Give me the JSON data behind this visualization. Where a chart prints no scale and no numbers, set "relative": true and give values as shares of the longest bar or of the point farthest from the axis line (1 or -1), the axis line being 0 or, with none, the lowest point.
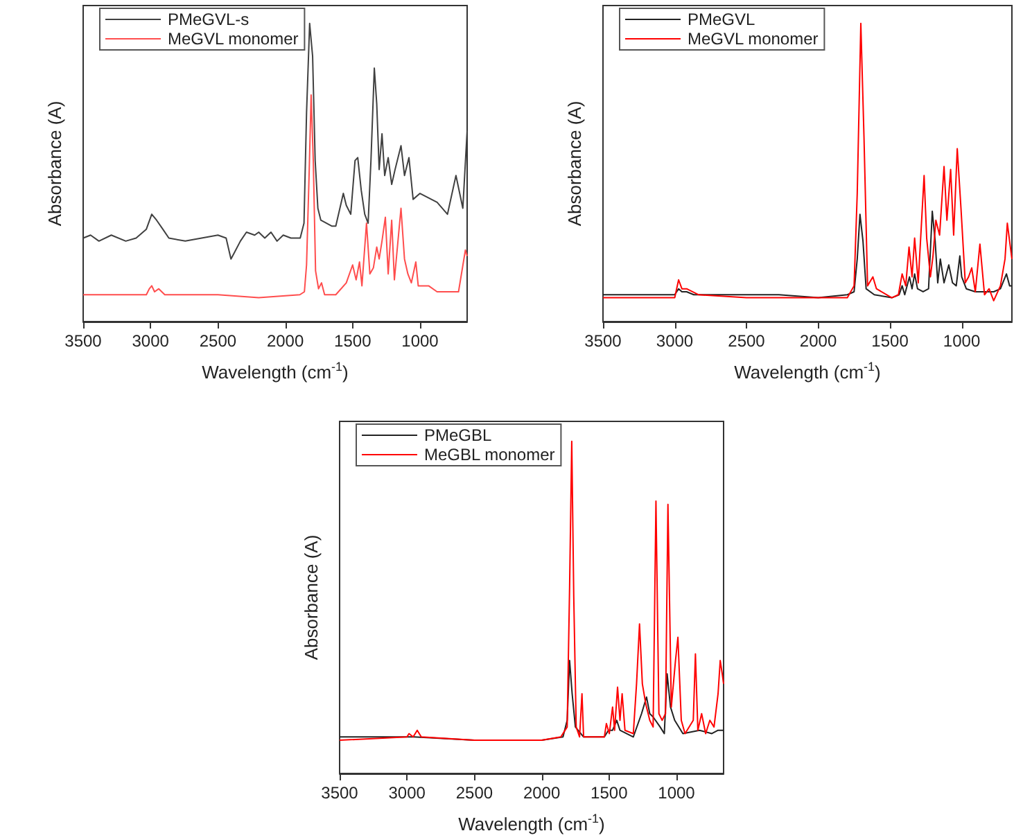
{
  "chart_data": [
    {
      "type": "line",
      "relative": true,
      "xlabel": "Wavelength (cm$^{-1}$)",
      "ylabel": "Absorbance (A)",
      "xlim": [
        3500,
        650
      ],
      "xticks": [
        3500,
        3000,
        2500,
        2000,
        1500,
        1000
      ],
      "legend": "top left",
      "marker": "none",
      "line_style": "solid",
      "grid": false,
      "series": [
        {
          "name": "PMeGVL-s",
          "color": "#404040",
          "x": [
            3500,
            3445,
            3383,
            3291,
            3184,
            3107,
            3031,
            2991,
            2955,
            2909,
            2864,
            2742,
            2621,
            2500,
            2439,
            2403,
            2379,
            2333,
            2288,
            2227,
            2197,
            2152,
            2106,
            2061,
            2015,
            1958,
            1889,
            1861,
            1842,
            1819,
            1797,
            1778,
            1758,
            1736,
            1653,
            1625,
            1569,
            1547,
            1514,
            1482,
            1462,
            1436,
            1410,
            1385,
            1364,
            1339,
            1321,
            1303,
            1282,
            1262,
            1236,
            1210,
            1185,
            1141,
            1115,
            1082,
            1051,
            1000,
            873,
            796,
            733,
            682,
            650
          ],
          "values": [
            0.28,
            0.29,
            0.27,
            0.29,
            0.27,
            0.28,
            0.31,
            0.36,
            0.34,
            0.31,
            0.28,
            0.27,
            0.28,
            0.29,
            0.28,
            0.21,
            0.23,
            0.27,
            0.3,
            0.29,
            0.3,
            0.28,
            0.3,
            0.27,
            0.29,
            0.28,
            0.28,
            0.33,
            0.7,
            1,
            0.89,
            0.54,
            0.38,
            0.34,
            0.32,
            0.32,
            0.43,
            0.39,
            0.36,
            0.54,
            0.55,
            0.44,
            0.36,
            0.33,
            0.54,
            0.85,
            0.73,
            0.51,
            0.63,
            0.49,
            0.55,
            0.46,
            0.51,
            0.59,
            0.49,
            0.55,
            0.41,
            0.43,
            0.4,
            0.36,
            0.49,
            0.38,
            0.64
          ]
        },
        {
          "name": "MeGVL monomer",
          "color": "#ff4d4d",
          "x": [
            3500,
            3031,
            3009,
            2991,
            2970,
            2939,
            2894,
            2803,
            2500,
            2197,
            1892,
            1858,
            1842,
            1822,
            1808,
            1792,
            1775,
            1753,
            1731,
            1708,
            1625,
            1547,
            1500,
            1474,
            1449,
            1431,
            1397,
            1372,
            1346,
            1321,
            1303,
            1282,
            1257,
            1236,
            1210,
            1190,
            1141,
            1115,
            1090,
            1064,
            1031,
            1013,
            936,
            873,
            714,
            663,
            650
          ],
          "values": [
            0.09,
            0.09,
            0.11,
            0.12,
            0.1,
            0.11,
            0.09,
            0.09,
            0.09,
            0.08,
            0.09,
            0.1,
            0.19,
            0.51,
            0.76,
            0.54,
            0.17,
            0.11,
            0.13,
            0.09,
            0.09,
            0.13,
            0.19,
            0.14,
            0.2,
            0.12,
            0.33,
            0.16,
            0.18,
            0.25,
            0.21,
            0.27,
            0.35,
            0.16,
            0.34,
            0.14,
            0.38,
            0.21,
            0.16,
            0.13,
            0.2,
            0.12,
            0.12,
            0.1,
            0.1,
            0.24,
            0.22
          ]
        }
      ]
    },
    {
      "type": "line",
      "relative": true,
      "xlabel": "Wavelength (cm$^{-1}$)",
      "ylabel": "Absorbance (A)",
      "xlim": [
        3500,
        650
      ],
      "xticks": [
        3500,
        3000,
        2500,
        2000,
        1500,
        1000
      ],
      "legend": "top left",
      "marker": "none",
      "line_style": "solid",
      "grid": false,
      "series": [
        {
          "name": "PMeGVL",
          "color": "#222222",
          "x": [
            3500,
            3258,
            3000,
            2973,
            2950,
            2917,
            2867,
            2500,
            2274,
            2000,
            1797,
            1750,
            1728,
            1709,
            1688,
            1666,
            1609,
            1487,
            1436,
            1415,
            1397,
            1364,
            1346,
            1328,
            1308,
            1269,
            1231,
            1205,
            1185,
            1167,
            1149,
            1123,
            1090,
            1064,
            1038,
            1013,
            1000,
            968,
            905,
            841,
            777,
            730,
            688,
            666,
            650
          ],
          "values": [
            0.09,
            0.09,
            0.09,
            0.11,
            0.1,
            0.1,
            0.09,
            0.09,
            0.09,
            0.08,
            0.09,
            0.1,
            0.21,
            0.36,
            0.27,
            0.11,
            0.09,
            0.08,
            0.09,
            0.12,
            0.09,
            0.15,
            0.11,
            0.16,
            0.11,
            0.1,
            0.11,
            0.37,
            0.27,
            0.13,
            0.21,
            0.13,
            0.19,
            0.13,
            0.12,
            0.22,
            0.15,
            0.11,
            0.1,
            0.1,
            0.1,
            0.11,
            0.16,
            0.12,
            0.12
          ]
        },
        {
          "name": "MeGVL monomer",
          "color": "#ff0000",
          "x": [
            3500,
            3000,
            2973,
            2950,
            2917,
            2833,
            2500,
            2000,
            1797,
            1750,
            1728,
            1703,
            1681,
            1656,
            1619,
            1594,
            1487,
            1441,
            1415,
            1390,
            1367,
            1346,
            1328,
            1303,
            1262,
            1244,
            1218,
            1200,
            1180,
            1154,
            1123,
            1103,
            1077,
            1056,
            1031,
            1005,
            975,
            952,
            930,
            905,
            873,
            841,
            809,
            777,
            730,
            698,
            682,
            650
          ],
          "values": [
            0.08,
            0.08,
            0.14,
            0.11,
            0.11,
            0.09,
            0.08,
            0.08,
            0.08,
            0.12,
            0.43,
            1,
            0.62,
            0.12,
            0.15,
            0.11,
            0.08,
            0.09,
            0.16,
            0.12,
            0.25,
            0.15,
            0.28,
            0.13,
            0.49,
            0.28,
            0.15,
            0.22,
            0.34,
            0.29,
            0.52,
            0.34,
            0.51,
            0.29,
            0.58,
            0.38,
            0.13,
            0.15,
            0.18,
            0.1,
            0.26,
            0.09,
            0.11,
            0.07,
            0.12,
            0.21,
            0.33,
            0.21
          ]
        }
      ]
    },
    {
      "type": "line",
      "relative": true,
      "xlabel": "Wavelength (cm$^{-1}$)",
      "ylabel": "Absorbance (A)",
      "xlim": [
        3500,
        650
      ],
      "xticks": [
        3500,
        3000,
        2500,
        2000,
        1500,
        1000
      ],
      "legend": "top left",
      "marker": "none",
      "line_style": "solid",
      "grid": false,
      "series": [
        {
          "name": "PMeGBL",
          "color": "#222222",
          "x": [
            3500,
            3285,
            3000,
            2947,
            2500,
            2000,
            1842,
            1811,
            1793,
            1774,
            1750,
            1689,
            1535,
            1505,
            1474,
            1443,
            1419,
            1320,
            1259,
            1222,
            1198,
            1173,
            1121,
            1090,
            1069,
            1044,
            1013,
            952,
            829,
            737,
            691,
            650
          ],
          "values": [
            0.11,
            0.11,
            0.11,
            0.11,
            0.1,
            0.1,
            0.11,
            0.16,
            0.34,
            0.24,
            0.14,
            0.11,
            0.11,
            0.13,
            0.13,
            0.16,
            0.13,
            0.11,
            0.18,
            0.23,
            0.18,
            0.17,
            0.14,
            0.12,
            0.3,
            0.2,
            0.16,
            0.12,
            0.13,
            0.12,
            0.13,
            0.13
          ]
        },
        {
          "name": "MeGBL monomer",
          "color": "#ff0000",
          "x": [
            3500,
            3000,
            2985,
            2954,
            2924,
            2894,
            2500,
            2000,
            1858,
            1811,
            1793,
            1777,
            1762,
            1744,
            1719,
            1701,
            1689,
            1535,
            1520,
            1498,
            1474,
            1459,
            1437,
            1419,
            1403,
            1382,
            1320,
            1296,
            1274,
            1253,
            1228,
            1198,
            1173,
            1152,
            1130,
            1106,
            1081,
            1063,
            1038,
            1007,
            989,
            964,
            936,
            875,
            859,
            841,
            813,
            783,
            752,
            721,
            691,
            675,
            660,
            650
          ],
          "values": [
            0.1,
            0.11,
            0.12,
            0.11,
            0.13,
            0.11,
            0.1,
            0.1,
            0.11,
            0.14,
            0.56,
            1,
            0.53,
            0.14,
            0.11,
            0.24,
            0.11,
            0.11,
            0.15,
            0.12,
            0.2,
            0.13,
            0.26,
            0.16,
            0.24,
            0.13,
            0.12,
            0.27,
            0.45,
            0.27,
            0.21,
            0.16,
            0.14,
            0.82,
            0.18,
            0.16,
            0.18,
            0.81,
            0.2,
            0.34,
            0.41,
            0.16,
            0.12,
            0.16,
            0.36,
            0.13,
            0.18,
            0.12,
            0.16,
            0.14,
            0.24,
            0.34,
            0.3,
            0.27
          ]
        }
      ]
    }
  ]
}
